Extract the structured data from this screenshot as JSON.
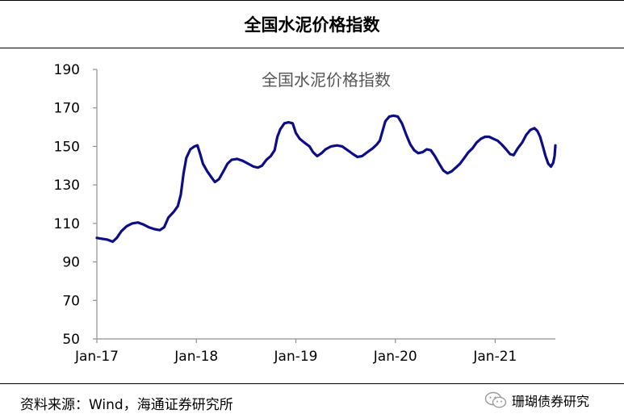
{
  "header": {
    "title": "全国水泥价格指数"
  },
  "footer": {
    "source": "资料来源：Wind，海通证券研究所",
    "watermark": "珊瑚债券研究"
  },
  "chart_data": {
    "type": "line",
    "title": "全国水泥价格指数",
    "xlabel": "",
    "ylabel": "",
    "ylim": [
      50,
      190
    ],
    "yticks": [
      50,
      70,
      90,
      110,
      130,
      150,
      170,
      190
    ],
    "xlim": [
      "2017-01-01",
      "2021-08-10"
    ],
    "xticks": [
      {
        "date": "2017-01-01",
        "label": "Jan-17"
      },
      {
        "date": "2018-01-01",
        "label": "Jan-18"
      },
      {
        "date": "2019-01-01",
        "label": "Jan-19"
      },
      {
        "date": "2020-01-01",
        "label": "Jan-20"
      },
      {
        "date": "2021-01-01",
        "label": "Jan-21"
      }
    ],
    "grid": false,
    "legend": "none",
    "series_color": "#0d0d85",
    "series": [
      {
        "points": [
          [
            "2017-01-01",
            102.5
          ],
          [
            "2017-01-20",
            102
          ],
          [
            "2017-02-10",
            101.5
          ],
          [
            "2017-02-28",
            100.5
          ],
          [
            "2017-03-15",
            102.5
          ],
          [
            "2017-04-01",
            106
          ],
          [
            "2017-04-20",
            108.5
          ],
          [
            "2017-05-10",
            110
          ],
          [
            "2017-06-01",
            110.5
          ],
          [
            "2017-06-20",
            109.5
          ],
          [
            "2017-07-10",
            108
          ],
          [
            "2017-08-01",
            107
          ],
          [
            "2017-08-20",
            106.5
          ],
          [
            "2017-09-05",
            108
          ],
          [
            "2017-09-20",
            113
          ],
          [
            "2017-10-10",
            116
          ],
          [
            "2017-10-25",
            119
          ],
          [
            "2017-11-05",
            125
          ],
          [
            "2017-11-15",
            136
          ],
          [
            "2017-11-25",
            144
          ],
          [
            "2017-12-10",
            148.5
          ],
          [
            "2017-12-25",
            150
          ],
          [
            "2018-01-05",
            150.5
          ],
          [
            "2018-01-15",
            146
          ],
          [
            "2018-01-25",
            141
          ],
          [
            "2018-02-10",
            137
          ],
          [
            "2018-02-25",
            134
          ],
          [
            "2018-03-10",
            131.5
          ],
          [
            "2018-03-25",
            133
          ],
          [
            "2018-04-10",
            137
          ],
          [
            "2018-04-25",
            141
          ],
          [
            "2018-05-10",
            143
          ],
          [
            "2018-05-30",
            143.5
          ],
          [
            "2018-06-20",
            142.5
          ],
          [
            "2018-07-10",
            141
          ],
          [
            "2018-07-30",
            139.5
          ],
          [
            "2018-08-15",
            139
          ],
          [
            "2018-08-30",
            140
          ],
          [
            "2018-09-15",
            143
          ],
          [
            "2018-10-01",
            145
          ],
          [
            "2018-10-15",
            148
          ],
          [
            "2018-10-25",
            155
          ],
          [
            "2018-11-05",
            159
          ],
          [
            "2018-11-20",
            162
          ],
          [
            "2018-12-05",
            162.5
          ],
          [
            "2018-12-20",
            162
          ],
          [
            "2019-01-01",
            157
          ],
          [
            "2019-01-15",
            154
          ],
          [
            "2019-02-01",
            152
          ],
          [
            "2019-02-20",
            150
          ],
          [
            "2019-03-05",
            147
          ],
          [
            "2019-03-20",
            145
          ],
          [
            "2019-04-05",
            146.5
          ],
          [
            "2019-04-20",
            148.5
          ],
          [
            "2019-05-10",
            150
          ],
          [
            "2019-06-01",
            150.5
          ],
          [
            "2019-06-20",
            150
          ],
          [
            "2019-07-10",
            148
          ],
          [
            "2019-07-30",
            146
          ],
          [
            "2019-08-15",
            144.5
          ],
          [
            "2019-09-01",
            145
          ],
          [
            "2019-09-20",
            147
          ],
          [
            "2019-10-10",
            149
          ],
          [
            "2019-10-25",
            151
          ],
          [
            "2019-11-05",
            153
          ],
          [
            "2019-11-15",
            158
          ],
          [
            "2019-11-25",
            163
          ],
          [
            "2019-12-10",
            165.5
          ],
          [
            "2019-12-25",
            166
          ],
          [
            "2020-01-10",
            165.5
          ],
          [
            "2020-01-25",
            162
          ],
          [
            "2020-02-10",
            156
          ],
          [
            "2020-02-25",
            151
          ],
          [
            "2020-03-10",
            148
          ],
          [
            "2020-03-25",
            146.5
          ],
          [
            "2020-04-10",
            147
          ],
          [
            "2020-04-25",
            148.5
          ],
          [
            "2020-05-10",
            148
          ],
          [
            "2020-05-25",
            145
          ],
          [
            "2020-06-10",
            141
          ],
          [
            "2020-06-25",
            137.5
          ],
          [
            "2020-07-10",
            136
          ],
          [
            "2020-07-25",
            137
          ],
          [
            "2020-08-10",
            139
          ],
          [
            "2020-08-25",
            141
          ],
          [
            "2020-09-10",
            144
          ],
          [
            "2020-09-25",
            147
          ],
          [
            "2020-10-10",
            149
          ],
          [
            "2020-10-25",
            152
          ],
          [
            "2020-11-10",
            154
          ],
          [
            "2020-11-25",
            155
          ],
          [
            "2020-12-10",
            155
          ],
          [
            "2020-12-25",
            154
          ],
          [
            "2021-01-10",
            153
          ],
          [
            "2021-01-25",
            151
          ],
          [
            "2021-02-10",
            148.5
          ],
          [
            "2021-02-25",
            146
          ],
          [
            "2021-03-10",
            145.5
          ],
          [
            "2021-03-25",
            149
          ],
          [
            "2021-04-10",
            152
          ],
          [
            "2021-04-25",
            156
          ],
          [
            "2021-05-10",
            158.5
          ],
          [
            "2021-05-25",
            159.5
          ],
          [
            "2021-06-05",
            158
          ],
          [
            "2021-06-15",
            155
          ],
          [
            "2021-06-25",
            150
          ],
          [
            "2021-07-05",
            145
          ],
          [
            "2021-07-15",
            141
          ],
          [
            "2021-07-25",
            139.5
          ],
          [
            "2021-08-02",
            141.5
          ],
          [
            "2021-08-07",
            145
          ],
          [
            "2021-08-10",
            150.5
          ]
        ]
      }
    ]
  }
}
